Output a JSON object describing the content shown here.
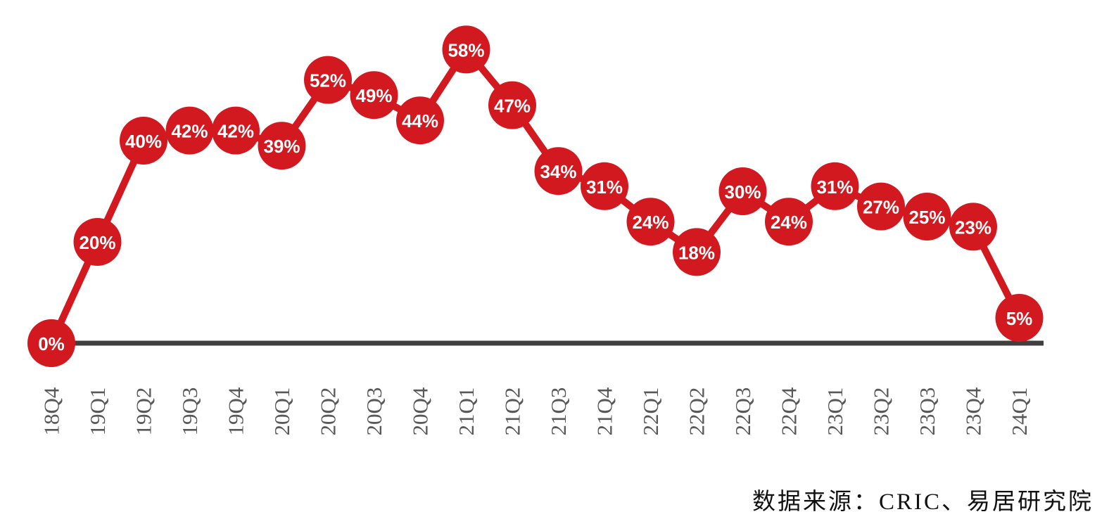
{
  "chart_data": {
    "type": "line",
    "categories": [
      "18Q4",
      "19Q1",
      "19Q2",
      "19Q3",
      "19Q4",
      "20Q1",
      "20Q2",
      "20Q3",
      "20Q4",
      "21Q1",
      "21Q2",
      "21Q3",
      "21Q4",
      "22Q1",
      "22Q2",
      "22Q3",
      "22Q4",
      "23Q1",
      "23Q2",
      "23Q3",
      "23Q4",
      "24Q1"
    ],
    "values": [
      0,
      20,
      40,
      42,
      42,
      39,
      52,
      49,
      44,
      58,
      47,
      34,
      31,
      24,
      18,
      30,
      24,
      31,
      27,
      25,
      23,
      5
    ],
    "unit": "%",
    "title": "",
    "xlabel": "",
    "ylabel": "",
    "ylim": [
      0,
      65
    ],
    "grid": false,
    "legend": false,
    "marker": "filled-circle-with-label",
    "data_label_position": "inside-marker",
    "x_tick_rotation": -90
  },
  "source_note": "数据来源：CRIC、易居研究院",
  "colors": {
    "series": "#d2191f",
    "marker_fill": "#d2191f",
    "data_label_text": "#ffffff",
    "axis_line": "#3f3f3f",
    "tick_label": "#58585a",
    "source_text": "#111111",
    "background": "#ffffff"
  }
}
